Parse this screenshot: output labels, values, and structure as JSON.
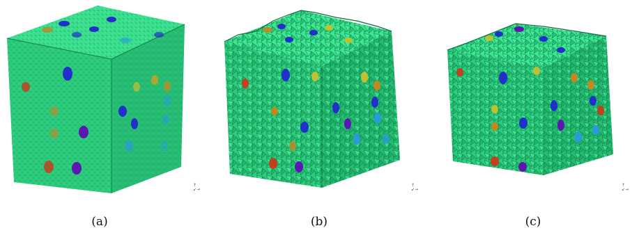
{
  "figure": {
    "panels": [
      {
        "caption": "(a)",
        "state": "meshed-cube"
      },
      {
        "caption": "(b)",
        "state": "fragmented-cube"
      },
      {
        "caption": "(c)",
        "state": "fragmented-cube"
      }
    ],
    "colors": {
      "matrix": "#33dd88",
      "matrix_dark": "#1fa868",
      "inclusion_blue": "#2030c8",
      "inclusion_purple": "#5a18b0",
      "inclusion_red": "#c04020",
      "inclusion_orange": "#c08a20",
      "inclusion_cyan": "#2a9ad8",
      "inclusion_yellow": "#d0c030"
    }
  }
}
